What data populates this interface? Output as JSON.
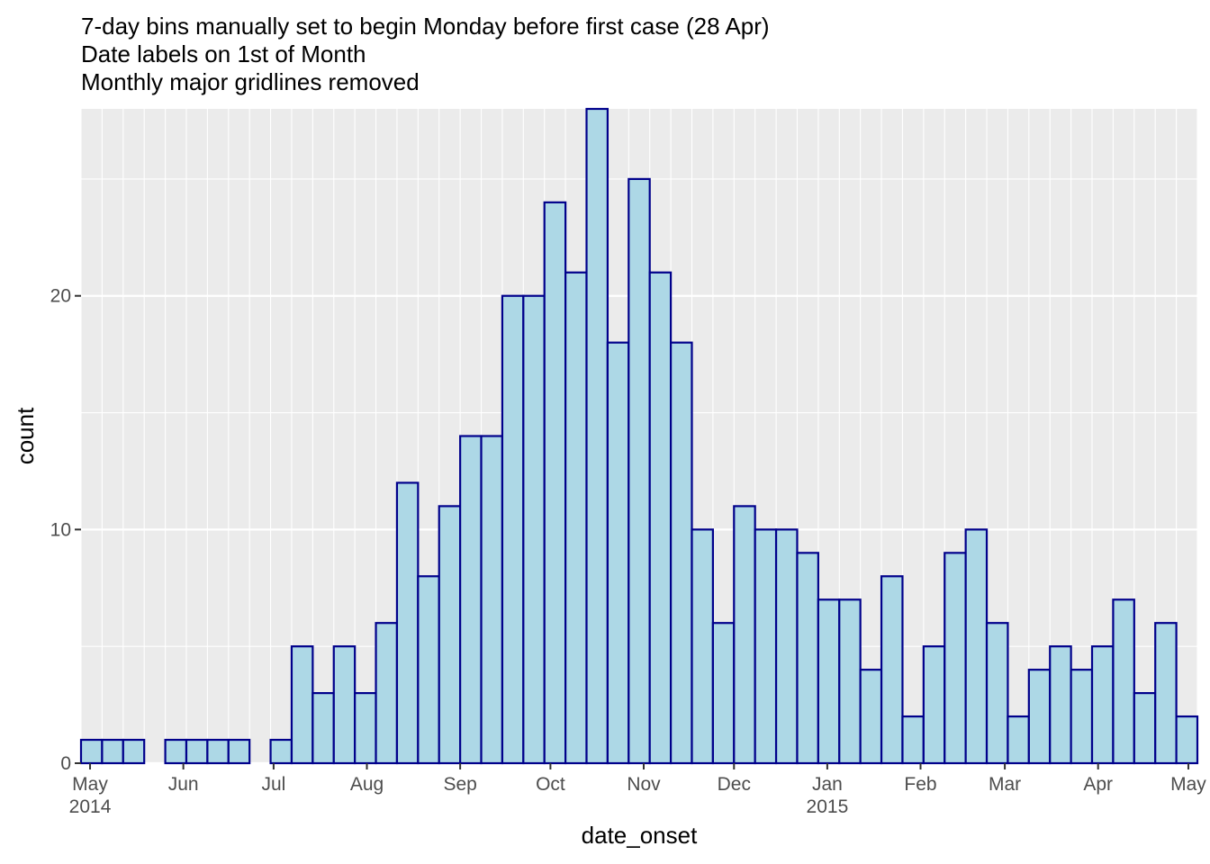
{
  "chart_data": {
    "type": "bar",
    "title_lines": [
      "7-day bins manually set to begin Monday before first case (28 Apr)",
      "Date labels on 1st of Month",
      "Monthly major gridlines removed"
    ],
    "xlabel": "date_onset",
    "ylabel": "count",
    "bin_width_days": 7,
    "bin_starts": [
      "2014-04-28",
      "2014-05-05",
      "2014-05-12",
      "2014-05-19",
      "2014-05-26",
      "2014-06-02",
      "2014-06-09",
      "2014-06-16",
      "2014-06-23",
      "2014-06-30",
      "2014-07-07",
      "2014-07-14",
      "2014-07-21",
      "2014-07-28",
      "2014-08-04",
      "2014-08-11",
      "2014-08-18",
      "2014-08-25",
      "2014-09-01",
      "2014-09-08",
      "2014-09-15",
      "2014-09-22",
      "2014-09-29",
      "2014-10-06",
      "2014-10-13",
      "2014-10-20",
      "2014-10-27",
      "2014-11-03",
      "2014-11-10",
      "2014-11-17",
      "2014-11-24",
      "2014-12-01",
      "2014-12-08",
      "2014-12-15",
      "2014-12-22",
      "2014-12-29",
      "2015-01-05",
      "2015-01-12",
      "2015-01-19",
      "2015-01-26",
      "2015-02-02",
      "2015-02-09",
      "2015-02-16",
      "2015-02-23",
      "2015-03-02",
      "2015-03-09",
      "2015-03-16",
      "2015-03-23",
      "2015-03-30",
      "2015-04-06",
      "2015-04-13",
      "2015-04-20",
      "2015-04-27"
    ],
    "values": [
      1,
      1,
      1,
      0,
      1,
      1,
      1,
      1,
      0,
      1,
      5,
      3,
      5,
      3,
      6,
      12,
      8,
      11,
      14,
      14,
      20,
      20,
      24,
      21,
      28,
      18,
      25,
      21,
      18,
      10,
      6,
      11,
      10,
      10,
      9,
      7,
      7,
      4,
      8,
      2,
      5,
      9,
      10,
      6,
      2,
      4,
      5,
      4,
      5,
      7,
      3,
      6,
      2
    ],
    "xlim": [
      "2014-04-28",
      "2015-05-04"
    ],
    "ylim": [
      0,
      28
    ],
    "y_ticks": [
      0,
      10,
      20
    ],
    "y_tick_labels": [
      "0",
      "10",
      "20"
    ],
    "x_ticks": [
      "2014-05-01",
      "2014-06-01",
      "2014-07-01",
      "2014-08-01",
      "2014-09-01",
      "2014-10-01",
      "2014-11-01",
      "2014-12-01",
      "2015-01-01",
      "2015-02-01",
      "2015-03-01",
      "2015-04-01",
      "2015-05-01"
    ],
    "x_tick_labels": [
      "May\n2014",
      "Jun",
      "Jul",
      "Aug",
      "Sep",
      "Oct",
      "Nov",
      "Dec",
      "Jan\n2015",
      "Feb",
      "Mar",
      "Apr",
      "May"
    ],
    "grid": true,
    "panel_background": "#ebebeb",
    "bar_fill": "#add8e6",
    "bar_outline": "#00008b"
  }
}
